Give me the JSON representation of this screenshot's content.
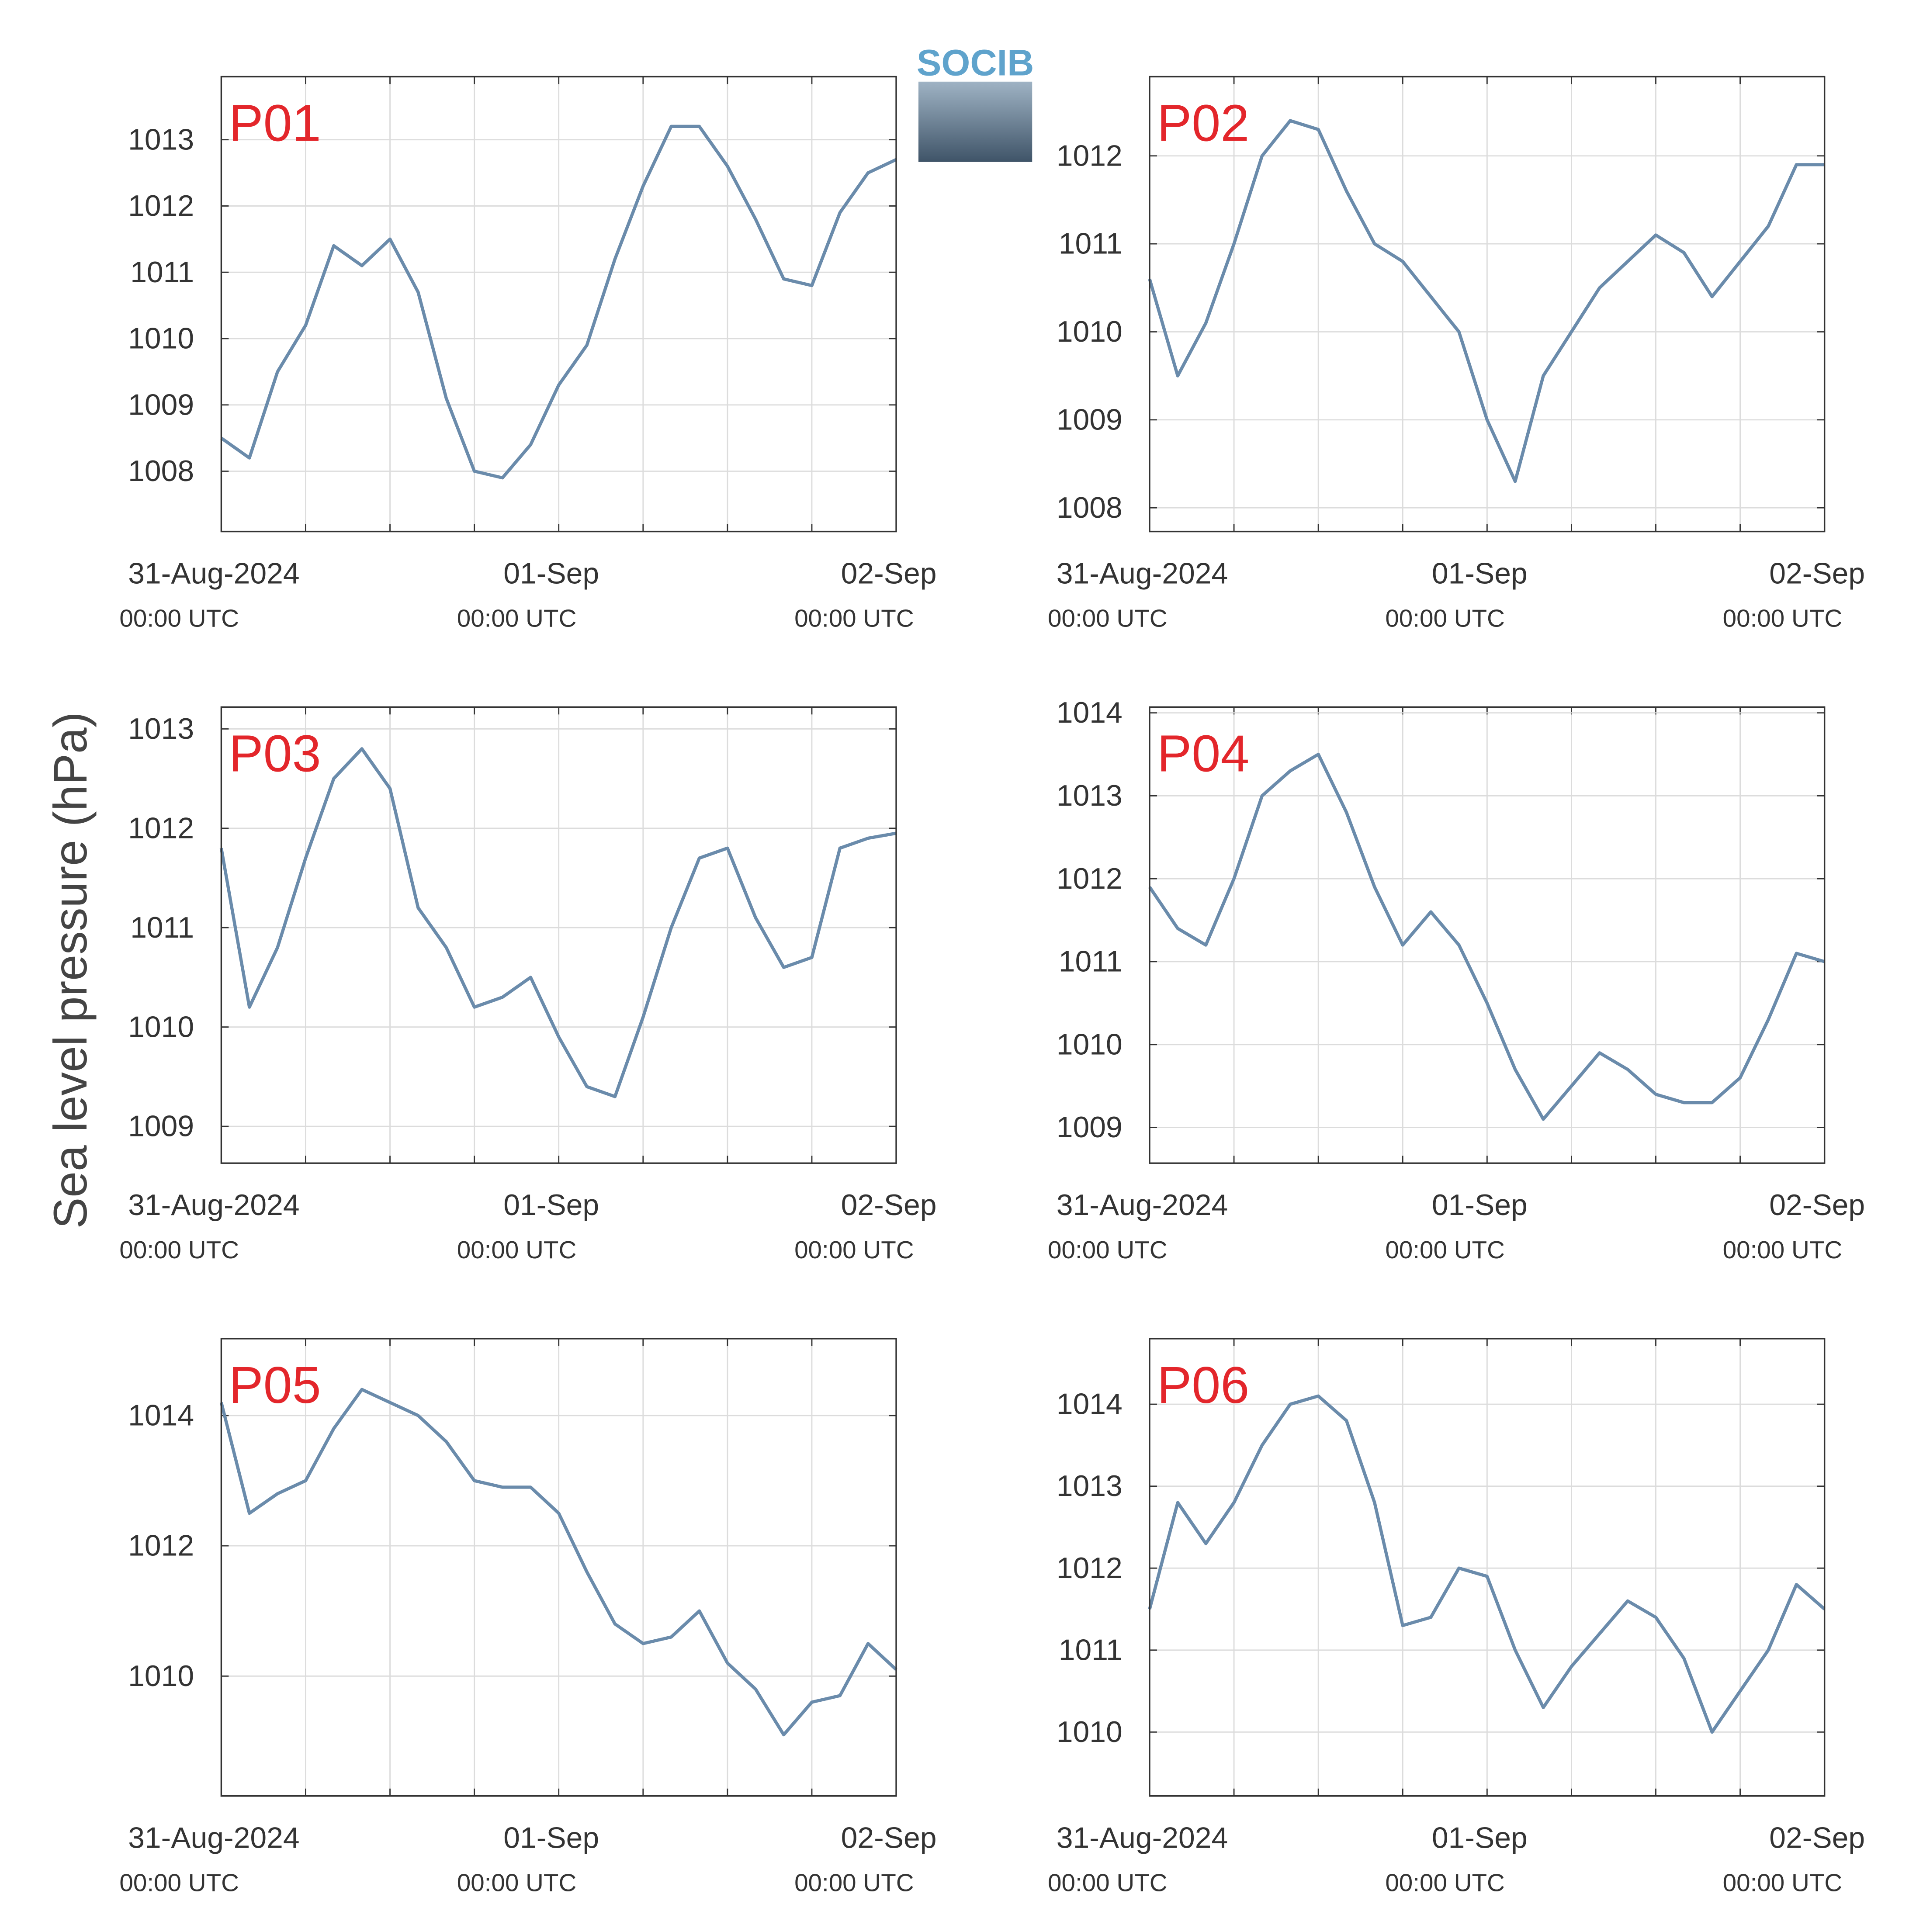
{
  "ylabel": "Sea level pressure (hPa)",
  "logo": "SOCIB",
  "chart_data": [
    {
      "type": "line",
      "title": "P01",
      "color": "#6a8bab",
      "grid": true,
      "x": [
        0,
        2,
        4,
        6,
        8,
        10,
        12,
        14,
        16,
        18,
        20,
        22,
        24,
        26,
        28,
        30,
        32,
        34,
        36,
        38,
        40,
        42,
        44,
        46,
        48
      ],
      "values": [
        1008.5,
        1008.2,
        1009.5,
        1010.2,
        1011.4,
        1011.1,
        1011.5,
        1010.7,
        1009.1,
        1008.0,
        1007.9,
        1008.4,
        1009.3,
        1009.9,
        1011.2,
        1012.3,
        1013.2,
        1013.2,
        1012.6,
        1011.8,
        1010.9,
        1010.8,
        1011.9,
        1012.5,
        1012.7
      ],
      "xlim": [
        0,
        48
      ],
      "xticks": [
        {
          "value": 0,
          "label": "31-Aug-2024",
          "sublabel": "00:00 UTC"
        },
        {
          "value": 24,
          "label": "01-Sep",
          "sublabel": "00:00 UTC"
        },
        {
          "value": 48,
          "label": "02-Sep",
          "sublabel": "00:00 UTC"
        }
      ],
      "xminorticks": [
        6,
        12,
        18,
        30,
        36,
        42
      ],
      "ylim": [
        1007.09,
        1013.95
      ],
      "yticks": [
        1008,
        1009,
        1010,
        1011,
        1012,
        1013
      ]
    },
    {
      "type": "line",
      "title": "P02",
      "color": "#6a8bab",
      "grid": true,
      "x": [
        0,
        2,
        4,
        6,
        8,
        10,
        12,
        14,
        16,
        18,
        20,
        22,
        24,
        26,
        28,
        30,
        32,
        34,
        36,
        38,
        40,
        42,
        44,
        46,
        48
      ],
      "values": [
        1010.6,
        1009.5,
        1010.1,
        1011.0,
        1012.0,
        1012.4,
        1012.3,
        1011.6,
        1011.0,
        1010.8,
        1010.4,
        1010.0,
        1009.0,
        1008.3,
        1009.5,
        1010.0,
        1010.5,
        1010.8,
        1011.1,
        1010.9,
        1010.4,
        1010.8,
        1011.2,
        1011.9,
        1011.9
      ],
      "xlim": [
        0,
        48
      ],
      "xticks": [
        {
          "value": 0,
          "label": "31-Aug-2024",
          "sublabel": "00:00 UTC"
        },
        {
          "value": 24,
          "label": "01-Sep",
          "sublabel": "00:00 UTC"
        },
        {
          "value": 48,
          "label": "02-Sep",
          "sublabel": "00:00 UTC"
        }
      ],
      "xminorticks": [
        6,
        12,
        18,
        30,
        36,
        42
      ],
      "ylim": [
        1007.73,
        1012.9
      ],
      "yticks": [
        1008,
        1009,
        1010,
        1011,
        1012
      ]
    },
    {
      "type": "line",
      "title": "P03",
      "color": "#6a8bab",
      "grid": true,
      "x": [
        0,
        2,
        4,
        6,
        8,
        10,
        12,
        14,
        16,
        18,
        20,
        22,
        24,
        26,
        28,
        30,
        32,
        34,
        36,
        38,
        40,
        42,
        44,
        46,
        48
      ],
      "values": [
        1011.8,
        1010.2,
        1010.8,
        1011.7,
        1012.5,
        1012.8,
        1012.4,
        1011.2,
        1010.8,
        1010.2,
        1010.3,
        1010.5,
        1009.9,
        1009.4,
        1009.3,
        1010.1,
        1011.0,
        1011.7,
        1011.8,
        1011.1,
        1010.6,
        1010.7,
        1011.8,
        1011.9,
        1011.95
      ],
      "xlim": [
        0,
        48
      ],
      "xticks": [
        {
          "value": 0,
          "label": "31-Aug-2024",
          "sublabel": "00:00 UTC"
        },
        {
          "value": 24,
          "label": "01-Sep",
          "sublabel": "00:00 UTC"
        },
        {
          "value": 48,
          "label": "02-Sep",
          "sublabel": "00:00 UTC"
        }
      ],
      "xminorticks": [
        6,
        12,
        18,
        30,
        36,
        42
      ],
      "ylim": [
        1008.63,
        1013.22
      ],
      "yticks": [
        1009,
        1010,
        1011,
        1012,
        1013
      ]
    },
    {
      "type": "line",
      "title": "P04",
      "color": "#6a8bab",
      "grid": true,
      "x": [
        0,
        2,
        4,
        6,
        8,
        10,
        12,
        14,
        16,
        18,
        20,
        22,
        24,
        26,
        28,
        30,
        32,
        34,
        36,
        38,
        40,
        42,
        44,
        46,
        48
      ],
      "values": [
        1011.9,
        1011.4,
        1011.2,
        1012.0,
        1013.0,
        1013.3,
        1013.5,
        1012.8,
        1011.9,
        1011.2,
        1011.6,
        1011.2,
        1010.5,
        1009.7,
        1009.1,
        1009.5,
        1009.9,
        1009.7,
        1009.4,
        1009.3,
        1009.3,
        1009.6,
        1010.3,
        1011.1,
        1011.0
      ],
      "xlim": [
        0,
        48
      ],
      "xticks": [
        {
          "value": 0,
          "label": "31-Aug-2024",
          "sublabel": "00:00 UTC"
        },
        {
          "value": 24,
          "label": "01-Sep",
          "sublabel": "00:00 UTC"
        },
        {
          "value": 48,
          "label": "02-Sep",
          "sublabel": "00:00 UTC"
        }
      ],
      "xminorticks": [
        6,
        12,
        18,
        30,
        36,
        42
      ],
      "ylim": [
        1008.57,
        1014.07
      ],
      "yticks": [
        1009,
        1010,
        1011,
        1012,
        1013,
        1014
      ]
    },
    {
      "type": "line",
      "title": "P05",
      "color": "#6a8bab",
      "grid": true,
      "x": [
        0,
        2,
        4,
        6,
        8,
        10,
        12,
        14,
        16,
        18,
        20,
        22,
        24,
        26,
        28,
        30,
        32,
        34,
        36,
        38,
        40,
        42,
        44,
        46,
        48
      ],
      "values": [
        1014.2,
        1012.5,
        1012.8,
        1013.0,
        1013.8,
        1014.4,
        1014.2,
        1014.0,
        1013.6,
        1013.0,
        1012.9,
        1012.9,
        1012.5,
        1011.6,
        1010.8,
        1010.5,
        1010.6,
        1011.0,
        1010.2,
        1009.8,
        1009.1,
        1009.6,
        1009.7,
        1010.5,
        1010.1
      ],
      "xlim": [
        0,
        48
      ],
      "xticks": [
        {
          "value": 0,
          "label": "31-Aug-2024",
          "sublabel": "00:00 UTC"
        },
        {
          "value": 24,
          "label": "01-Sep",
          "sublabel": "00:00 UTC"
        },
        {
          "value": 48,
          "label": "02-Sep",
          "sublabel": "00:00 UTC"
        }
      ],
      "xminorticks": [
        6,
        12,
        18,
        30,
        36,
        42
      ],
      "ylim": [
        1008.16,
        1015.18
      ],
      "yticks": [
        1010,
        1012,
        1014
      ]
    },
    {
      "type": "line",
      "title": "P06",
      "color": "#6a8bab",
      "grid": true,
      "x": [
        0,
        2,
        4,
        6,
        8,
        10,
        12,
        14,
        16,
        18,
        20,
        22,
        24,
        26,
        28,
        30,
        32,
        34,
        36,
        38,
        40,
        42,
        44,
        46,
        48
      ],
      "values": [
        1011.5,
        1012.8,
        1012.3,
        1012.8,
        1013.5,
        1014.0,
        1014.1,
        1013.8,
        1012.8,
        1011.3,
        1011.4,
        1012.0,
        1011.9,
        1011.0,
        1010.3,
        1010.8,
        1011.2,
        1011.6,
        1011.4,
        1010.9,
        1010.0,
        1010.5,
        1011.0,
        1011.8,
        1011.5
      ],
      "xlim": [
        0,
        48
      ],
      "xticks": [
        {
          "value": 0,
          "label": "31-Aug-2024",
          "sublabel": "00:00 UTC"
        },
        {
          "value": 24,
          "label": "01-Sep",
          "sublabel": "00:00 UTC"
        },
        {
          "value": 48,
          "label": "02-Sep",
          "sublabel": "00:00 UTC"
        }
      ],
      "xminorticks": [
        6,
        12,
        18,
        30,
        36,
        42
      ],
      "ylim": [
        1009.22,
        1014.8
      ],
      "yticks": [
        1010,
        1011,
        1012,
        1013,
        1014
      ]
    }
  ]
}
